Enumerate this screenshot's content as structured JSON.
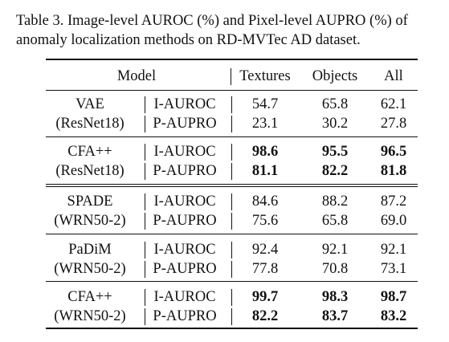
{
  "caption": {
    "line1": "Table 3. Image-level AUROC (%) and Pixel-level AUPRO (%) of",
    "line2": "anomaly localization methods on RD-MVTec AD dataset."
  },
  "header": {
    "model": "Model",
    "textures": "Textures",
    "objects": "Objects",
    "all": "All"
  },
  "groups": [
    {
      "model_name": "VAE",
      "backbone": "(ResNet18)",
      "rows": [
        {
          "metric": "I-AUROC",
          "textures": "54.7",
          "objects": "65.8",
          "all": "62.1",
          "bold": false
        },
        {
          "metric": "P-AUPRO",
          "textures": "23.1",
          "objects": "30.2",
          "all": "27.8",
          "bold": false
        }
      ]
    },
    {
      "model_name": "CFA++",
      "backbone": "(ResNet18)",
      "rows": [
        {
          "metric": "I-AUROC",
          "textures": "98.6",
          "objects": "95.5",
          "all": "96.5",
          "bold": true
        },
        {
          "metric": "P-AUPRO",
          "textures": "81.1",
          "objects": "82.2",
          "all": "81.8",
          "bold": true
        }
      ]
    },
    {
      "model_name": "SPADE",
      "backbone": "(WRN50-2)",
      "rows": [
        {
          "metric": "I-AUROC",
          "textures": "84.6",
          "objects": "88.2",
          "all": "87.2",
          "bold": false
        },
        {
          "metric": "P-AUPRO",
          "textures": "75.6",
          "objects": "65.8",
          "all": "69.0",
          "bold": false
        }
      ]
    },
    {
      "model_name": "PaDiM",
      "backbone": "(WRN50-2)",
      "rows": [
        {
          "metric": "I-AUROC",
          "textures": "92.4",
          "objects": "92.1",
          "all": "92.1",
          "bold": false
        },
        {
          "metric": "P-AUPRO",
          "textures": "77.8",
          "objects": "70.8",
          "all": "73.1",
          "bold": false
        }
      ]
    },
    {
      "model_name": "CFA++",
      "backbone": "(WRN50-2)",
      "rows": [
        {
          "metric": "I-AUROC",
          "textures": "99.7",
          "objects": "98.3",
          "all": "98.7",
          "bold": true
        },
        {
          "metric": "P-AUPRO",
          "textures": "82.2",
          "objects": "83.7",
          "all": "83.2",
          "bold": true
        }
      ]
    }
  ]
}
